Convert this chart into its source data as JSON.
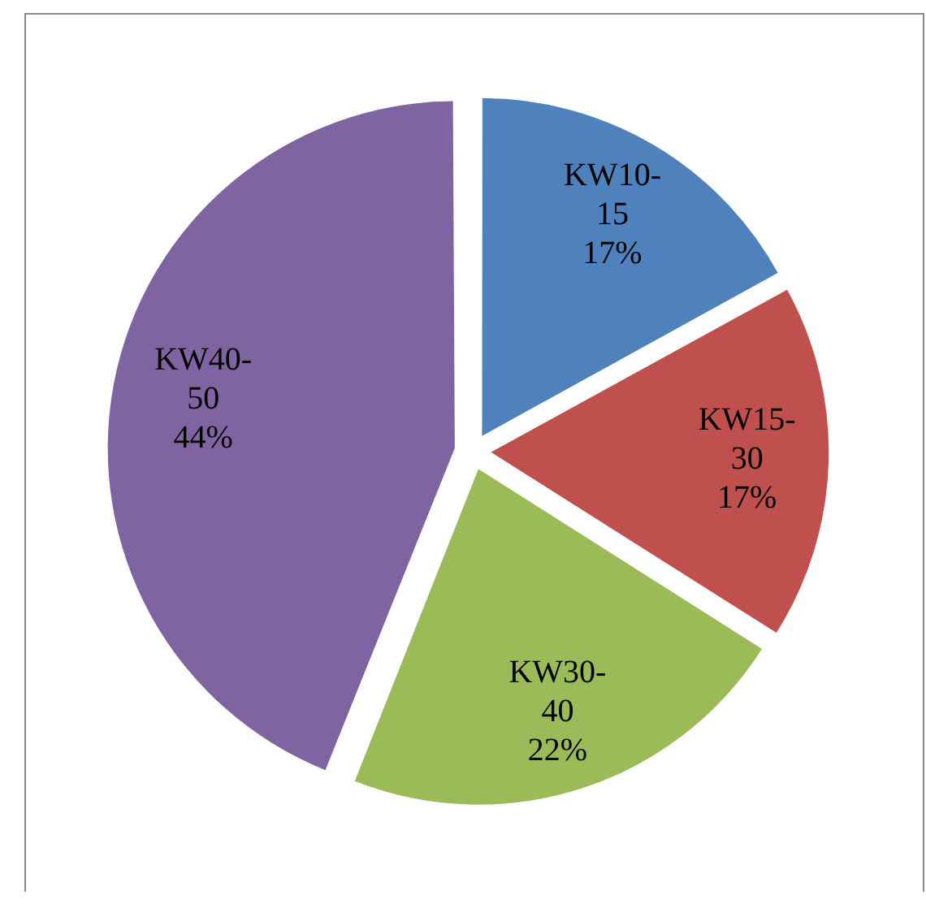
{
  "chart_data": {
    "type": "pie",
    "categories": [
      "KW10-15",
      "KW15-30",
      "KW30-40",
      "KW40-50"
    ],
    "values": [
      17,
      17,
      22,
      44
    ],
    "colors": [
      "#4f81bd",
      "#c0504d",
      "#9bbb59",
      "#8064a2"
    ],
    "value_labels": [
      "17%",
      "17%",
      "22%",
      "44%"
    ],
    "legend": false
  }
}
